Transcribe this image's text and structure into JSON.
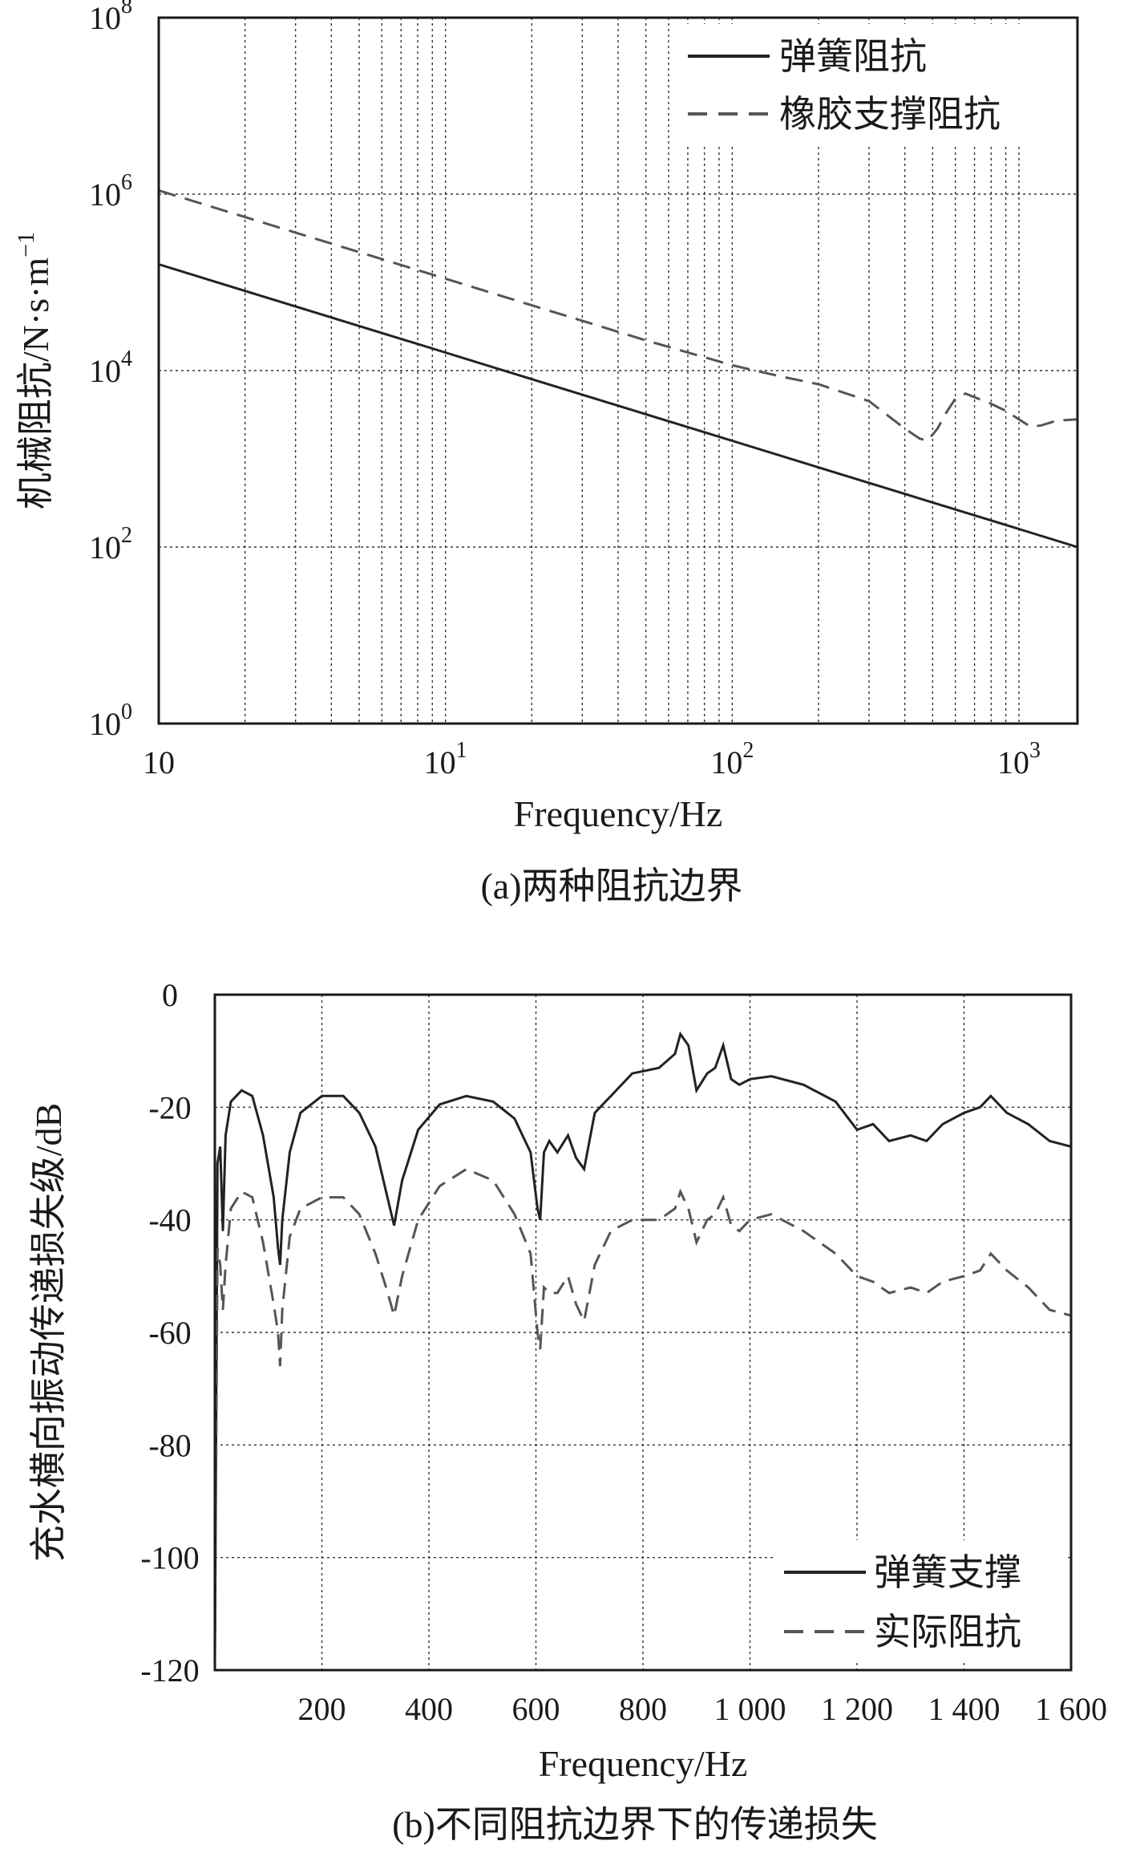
{
  "chart_data": [
    {
      "id": "a",
      "type": "line",
      "caption": "(a)两种阻抗边界",
      "xlabel": "Frequency/Hz",
      "ylabel": "机械阻抗/N·s·m",
      "ylabel_sup": "−1",
      "x_scale": "log",
      "y_scale": "log",
      "xlim": [
        1,
        1600
      ],
      "ylim": [
        1,
        100000000
      ],
      "x_ticks": [
        {
          "value": 1,
          "base": "10",
          "exp": ""
        },
        {
          "value": 10,
          "base": "10",
          "exp": "1"
        },
        {
          "value": 100,
          "base": "10",
          "exp": "2"
        },
        {
          "value": 1000,
          "base": "10",
          "exp": "3"
        }
      ],
      "y_ticks": [
        {
          "value": 1,
          "base": "10",
          "exp": "0"
        },
        {
          "value": 100,
          "base": "10",
          "exp": "2"
        },
        {
          "value": 10000,
          "base": "10",
          "exp": "4"
        },
        {
          "value": 1000000,
          "base": "10",
          "exp": "6"
        },
        {
          "value": 100000000,
          "base": "10",
          "exp": "8"
        }
      ],
      "grid": true,
      "legend": "top-right",
      "series": [
        {
          "name": "弹簧阻抗",
          "style": "solid",
          "color": "#222222",
          "points": [
            [
              1,
              160000
            ],
            [
              2,
              80000
            ],
            [
              5,
              32000
            ],
            [
              10,
              16000
            ],
            [
              20,
              8000
            ],
            [
              50,
              3200
            ],
            [
              100,
              1600
            ],
            [
              200,
              800
            ],
            [
              500,
              320
            ],
            [
              1000,
              160
            ],
            [
              1600,
              100
            ]
          ]
        },
        {
          "name": "橡胶支撑阻抗",
          "style": "dashed",
          "color": "#555555",
          "points": [
            [
              1,
              1100000
            ],
            [
              2,
              550000
            ],
            [
              5,
              220000
            ],
            [
              10,
              110000
            ],
            [
              20,
              55000
            ],
            [
              50,
              22000
            ],
            [
              100,
              11500
            ],
            [
              150,
              8500
            ],
            [
              200,
              7000
            ],
            [
              300,
              4500
            ],
            [
              400,
              2200
            ],
            [
              450,
              1700
            ],
            [
              480,
              1600
            ],
            [
              520,
              2200
            ],
            [
              560,
              3400
            ],
            [
              600,
              4800
            ],
            [
              650,
              5500
            ],
            [
              700,
              5000
            ],
            [
              800,
              4200
            ],
            [
              900,
              3500
            ],
            [
              1000,
              2800
            ],
            [
              1100,
              2300
            ],
            [
              1200,
              2400
            ],
            [
              1350,
              2700
            ],
            [
              1600,
              2800
            ]
          ]
        }
      ]
    },
    {
      "id": "b",
      "type": "line",
      "caption": "(b)不同阻抗边界下的传递损失",
      "xlabel": "Frequency/Hz",
      "ylabel": "充水横向振动传递损失级/dB",
      "xlim": [
        0,
        1600
      ],
      "ylim": [
        -120,
        0
      ],
      "x_ticks": [
        "200",
        "400",
        "600",
        "800",
        "1 000",
        "1 200",
        "1 400",
        "1 600"
      ],
      "y_ticks": [
        "0",
        "-20",
        "-40",
        "-60",
        "-80",
        "-100",
        "-120"
      ],
      "grid": true,
      "legend": "bottom-right",
      "series": [
        {
          "name": "弹簧支撑",
          "style": "solid",
          "color": "#222222",
          "points": [
            [
              0,
              -118
            ],
            [
              5,
              -30
            ],
            [
              10,
              -27
            ],
            [
              15,
              -42
            ],
            [
              20,
              -25
            ],
            [
              30,
              -19
            ],
            [
              50,
              -17
            ],
            [
              70,
              -18
            ],
            [
              90,
              -25
            ],
            [
              110,
              -36
            ],
            [
              118,
              -45
            ],
            [
              122,
              -48
            ],
            [
              126,
              -40
            ],
            [
              140,
              -28
            ],
            [
              160,
              -21
            ],
            [
              200,
              -18
            ],
            [
              240,
              -18
            ],
            [
              270,
              -21
            ],
            [
              300,
              -27
            ],
            [
              320,
              -35
            ],
            [
              335,
              -41
            ],
            [
              350,
              -33
            ],
            [
              380,
              -24
            ],
            [
              420,
              -19.5
            ],
            [
              470,
              -18
            ],
            [
              520,
              -19
            ],
            [
              560,
              -22
            ],
            [
              590,
              -28
            ],
            [
              603,
              -38
            ],
            [
              608,
              -40
            ],
            [
              615,
              -28
            ],
            [
              625,
              -26
            ],
            [
              640,
              -28
            ],
            [
              660,
              -25
            ],
            [
              675,
              -29
            ],
            [
              690,
              -31
            ],
            [
              710,
              -21
            ],
            [
              740,
              -18
            ],
            [
              780,
              -14
            ],
            [
              830,
              -13
            ],
            [
              860,
              -10.5
            ],
            [
              870,
              -7
            ],
            [
              885,
              -9
            ],
            [
              900,
              -17
            ],
            [
              920,
              -14
            ],
            [
              935,
              -13
            ],
            [
              950,
              -9
            ],
            [
              965,
              -15
            ],
            [
              980,
              -16
            ],
            [
              1000,
              -15
            ],
            [
              1040,
              -14.5
            ],
            [
              1100,
              -16
            ],
            [
              1160,
              -19
            ],
            [
              1200,
              -24
            ],
            [
              1230,
              -23
            ],
            [
              1260,
              -26
            ],
            [
              1300,
              -25
            ],
            [
              1330,
              -26
            ],
            [
              1360,
              -23
            ],
            [
              1400,
              -21
            ],
            [
              1430,
              -20
            ],
            [
              1450,
              -18
            ],
            [
              1480,
              -21
            ],
            [
              1520,
              -23
            ],
            [
              1560,
              -26
            ],
            [
              1600,
              -27
            ]
          ]
        },
        {
          "name": "实际阻抗",
          "style": "dashed",
          "color": "#555555",
          "points": [
            [
              0,
              -118
            ],
            [
              5,
              -45
            ],
            [
              10,
              -48
            ],
            [
              15,
              -56
            ],
            [
              20,
              -48
            ],
            [
              30,
              -38
            ],
            [
              50,
              -35
            ],
            [
              70,
              -36
            ],
            [
              90,
              -44
            ],
            [
              110,
              -55
            ],
            [
              118,
              -60
            ],
            [
              122,
              -66
            ],
            [
              126,
              -56
            ],
            [
              140,
              -43
            ],
            [
              160,
              -38
            ],
            [
              200,
              -36
            ],
            [
              240,
              -36
            ],
            [
              270,
              -39
            ],
            [
              300,
              -46
            ],
            [
              320,
              -52
            ],
            [
              335,
              -57
            ],
            [
              350,
              -50
            ],
            [
              380,
              -40
            ],
            [
              420,
              -34
            ],
            [
              470,
              -31
            ],
            [
              520,
              -33
            ],
            [
              560,
              -39
            ],
            [
              590,
              -46
            ],
            [
              603,
              -60
            ],
            [
              608,
              -63
            ],
            [
              615,
              -52
            ],
            [
              625,
              -53
            ],
            [
              640,
              -53
            ],
            [
              660,
              -50
            ],
            [
              675,
              -55
            ],
            [
              690,
              -58
            ],
            [
              710,
              -48
            ],
            [
              740,
              -42
            ],
            [
              780,
              -40
            ],
            [
              830,
              -40
            ],
            [
              860,
              -38
            ],
            [
              870,
              -35
            ],
            [
              885,
              -38
            ],
            [
              900,
              -44
            ],
            [
              920,
              -40
            ],
            [
              935,
              -39
            ],
            [
              950,
              -36
            ],
            [
              965,
              -41
            ],
            [
              980,
              -42
            ],
            [
              1000,
              -40
            ],
            [
              1040,
              -39
            ],
            [
              1100,
              -42
            ],
            [
              1160,
              -46
            ],
            [
              1200,
              -50
            ],
            [
              1230,
              -51
            ],
            [
              1260,
              -53
            ],
            [
              1300,
              -52
            ],
            [
              1330,
              -53
            ],
            [
              1360,
              -51
            ],
            [
              1400,
              -50
            ],
            [
              1430,
              -49
            ],
            [
              1450,
              -46
            ],
            [
              1480,
              -49
            ],
            [
              1520,
              -52
            ],
            [
              1560,
              -56
            ],
            [
              1600,
              -57
            ]
          ]
        }
      ]
    }
  ]
}
